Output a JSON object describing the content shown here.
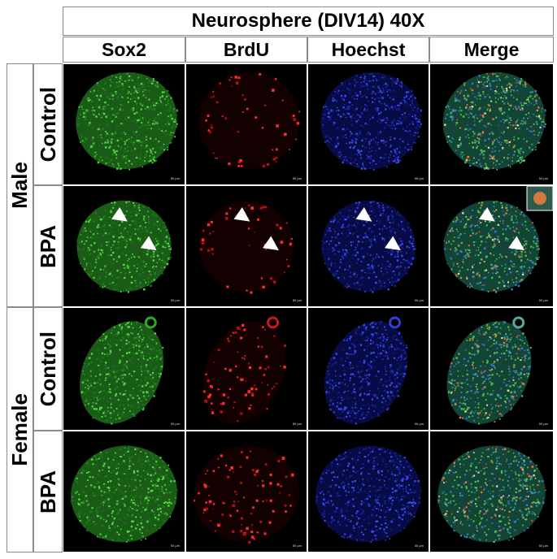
{
  "figure": {
    "title": "Neurosphere (DIV14) 40X",
    "columns": [
      "Sox2",
      "BrdU",
      "Hoechst",
      "Merge"
    ],
    "sexes": [
      "Male",
      "Female"
    ],
    "conditions": {
      "male": [
        "Control",
        "BPA"
      ],
      "female": [
        "Control",
        "BPA"
      ]
    },
    "scale_label": "50 µm",
    "channel_colors": {
      "sox2": "#2fa82a",
      "brdu": "#ff2020",
      "hoechst": "#2a3cd8"
    }
  }
}
